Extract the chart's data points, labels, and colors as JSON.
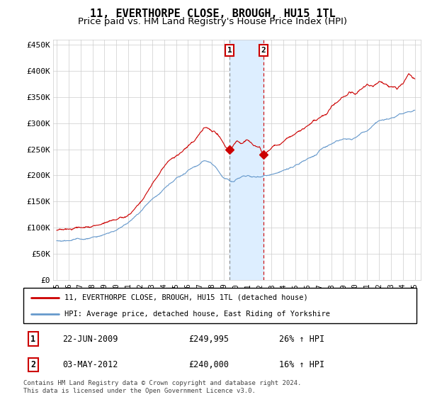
{
  "title": "11, EVERTHORPE CLOSE, BROUGH, HU15 1TL",
  "subtitle": "Price paid vs. HM Land Registry's House Price Index (HPI)",
  "ylim": [
    0,
    460000
  ],
  "yticks": [
    0,
    50000,
    100000,
    150000,
    200000,
    250000,
    300000,
    350000,
    400000,
    450000
  ],
  "ytick_labels": [
    "£0",
    "£50K",
    "£100K",
    "£150K",
    "£200K",
    "£250K",
    "£300K",
    "£350K",
    "£400K",
    "£450K"
  ],
  "red_color": "#cc0000",
  "blue_color": "#6699cc",
  "highlight_color": "#ddeeff",
  "legend_label_red": "11, EVERTHORPE CLOSE, BROUGH, HU15 1TL (detached house)",
  "legend_label_blue": "HPI: Average price, detached house, East Riding of Yorkshire",
  "point1_date": "22-JUN-2009",
  "point1_price": "£249,995",
  "point1_hpi": "26% ↑ HPI",
  "point1_x": 2009.47,
  "point1_y": 249995,
  "point2_date": "03-MAY-2012",
  "point2_price": "£240,000",
  "point2_hpi": "16% ↑ HPI",
  "point2_x": 2012.33,
  "point2_y": 240000,
  "highlight_x1": 2009.47,
  "highlight_x2": 2012.33,
  "footer": "Contains HM Land Registry data © Crown copyright and database right 2024.\nThis data is licensed under the Open Government Licence v3.0.",
  "title_fontsize": 11,
  "subtitle_fontsize": 9.5,
  "xlim_left": 1994.7,
  "xlim_right": 2025.5
}
